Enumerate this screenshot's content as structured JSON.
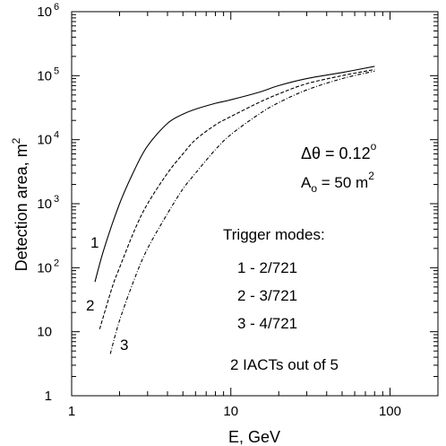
{
  "chart_data": {
    "type": "line",
    "title": "",
    "xlabel": "E, GeV",
    "ylabel": "Detection area, m",
    "ylabel_exponent": "2",
    "x_scale": "log",
    "y_scale": "log",
    "xlim": [
      1,
      200
    ],
    "ylim": [
      1,
      1000000
    ],
    "grid": false,
    "x_ticks": [
      {
        "value": 1,
        "label": "1"
      },
      {
        "value": 10,
        "label": "10"
      },
      {
        "value": 100,
        "label": "100"
      }
    ],
    "y_ticks": [
      {
        "value": 1,
        "base": "1",
        "exp": ""
      },
      {
        "value": 10,
        "base": "10",
        "exp": ""
      },
      {
        "value": 100,
        "base": "10",
        "exp": "2"
      },
      {
        "value": 1000,
        "base": "10",
        "exp": "3"
      },
      {
        "value": 10000,
        "base": "10",
        "exp": "4"
      },
      {
        "value": 100000,
        "base": "10",
        "exp": "5"
      },
      {
        "value": 1000000,
        "base": "10",
        "exp": "6"
      }
    ],
    "series": [
      {
        "label": "1",
        "line_style": "solid",
        "x": [
          1.4,
          1.6,
          2.0,
          2.5,
          3.0,
          4.0,
          5.0,
          6.0,
          8.0,
          10.0,
          15.0,
          20.0,
          30.0,
          50.0,
          80.0
        ],
        "y": [
          60,
          200,
          1000,
          3500,
          8000,
          18000,
          25000,
          30000,
          37000,
          42000,
          55000,
          70000,
          90000,
          112000,
          140000
        ]
      },
      {
        "label": "2",
        "line_style": "dashed",
        "x": [
          1.5,
          1.8,
          2.0,
          2.5,
          3.0,
          4.0,
          5.0,
          6.0,
          8.0,
          10.0,
          15.0,
          20.0,
          30.0,
          50.0,
          80.0
        ],
        "y": [
          11,
          50,
          100,
          400,
          1000,
          3000,
          6000,
          10000,
          17000,
          23000,
          38000,
          52000,
          75000,
          100000,
          125000
        ]
      },
      {
        "label": "3",
        "line_style": "dash-dot",
        "x": [
          1.75,
          2.0,
          2.5,
          3.0,
          4.0,
          5.0,
          6.0,
          8.0,
          10.0,
          15.0,
          20.0,
          30.0,
          50.0,
          80.0
        ],
        "y": [
          4.5,
          15,
          70,
          200,
          700,
          1700,
          3000,
          7000,
          12000,
          25000,
          38000,
          60000,
          90000,
          118000
        ]
      }
    ],
    "annotations": {
      "delta_theta": "Δθ = 0.12",
      "delta_theta_sup": "o",
      "area": "A",
      "area_sub": "o",
      "area_value": " = 50 m",
      "area_sup": "2",
      "trigger_title": "Trigger modes:",
      "trigger_modes": [
        "1 - 2/721",
        "2 - 3/721",
        "3 - 4/721"
      ],
      "iacts": "2 IACTs out of 5"
    }
  }
}
